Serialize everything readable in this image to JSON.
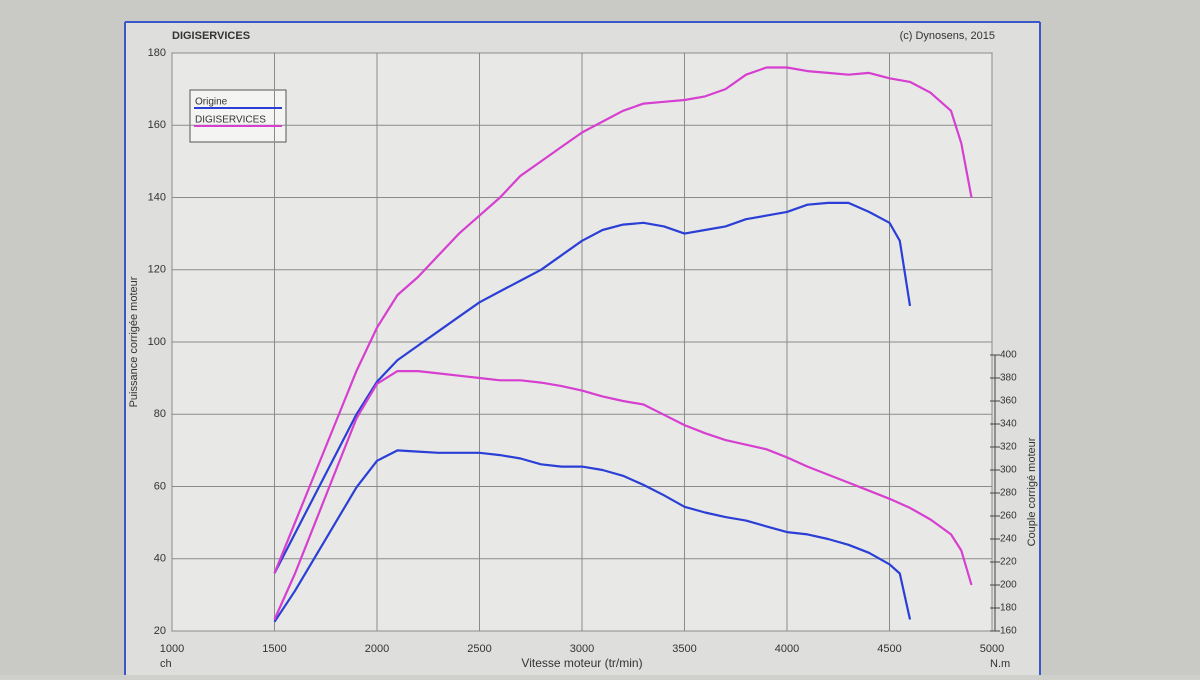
{
  "chart_data": {
    "type": "line",
    "header_left": "DIGISERVICES",
    "header_right": "(c) Dynosens, 2015",
    "x_label": "Vitesse moteur (tr/min)",
    "y_label": "Puissance corrigée moteur",
    "y_unit": "ch",
    "y2_label": "Couple corrigé moteur",
    "y2_unit": "N.m",
    "xlim": [
      1000,
      5000
    ],
    "xticks": [
      1000,
      1500,
      2000,
      2500,
      3000,
      3500,
      4000,
      4500,
      5000
    ],
    "ylim": [
      20,
      180
    ],
    "yticks": [
      20,
      40,
      60,
      80,
      100,
      120,
      140,
      160,
      180
    ],
    "y2lim": [
      160,
      400
    ],
    "y2ticks": [
      160,
      180,
      200,
      220,
      240,
      260,
      280,
      300,
      320,
      340,
      360,
      380,
      400
    ],
    "grid": true,
    "legend": "upper left",
    "series": [
      {
        "name": "Origine",
        "color": "#2b3fd6",
        "x": [
          1500,
          1600,
          1700,
          1800,
          1900,
          2000,
          2100,
          2200,
          2300,
          2400,
          2500,
          2600,
          2700,
          2800,
          2900,
          3000,
          3100,
          3200,
          3300,
          3400,
          3500,
          3600,
          3700,
          3800,
          3900,
          4000,
          4100,
          4200,
          4300,
          4400,
          4500,
          4550,
          4600
        ],
        "values": [
          36,
          47,
          58,
          69,
          80,
          89,
          95,
          99,
          103,
          107,
          111,
          114,
          117,
          120,
          124,
          128,
          131,
          132.5,
          133,
          132,
          130,
          131,
          132,
          134,
          135,
          136,
          138,
          138.5,
          138.5,
          136,
          133,
          128,
          110
        ]
      },
      {
        "name": "DIGISERVICES",
        "color": "#d63fd0",
        "x": [
          1500,
          1600,
          1700,
          1800,
          1900,
          2000,
          2100,
          2200,
          2300,
          2400,
          2500,
          2600,
          2700,
          2800,
          2900,
          3000,
          3100,
          3200,
          3300,
          3400,
          3500,
          3600,
          3700,
          3800,
          3900,
          4000,
          4100,
          4200,
          4300,
          4400,
          4500,
          4600,
          4700,
          4800,
          4850,
          4900
        ],
        "values": [
          36,
          50,
          64,
          78,
          92,
          104,
          113,
          118,
          124,
          130,
          135,
          140,
          146,
          150,
          154,
          158,
          161,
          164,
          166,
          166.5,
          167,
          168,
          170,
          174,
          176,
          176,
          175,
          174.5,
          174,
          174.5,
          173,
          172,
          169,
          164,
          155,
          140
        ]
      },
      {
        "color": "#2b3fd6",
        "axis": "y2",
        "x": [
          1500,
          1600,
          1700,
          1800,
          1900,
          2000,
          2100,
          2200,
          2300,
          2400,
          2500,
          2600,
          2700,
          2800,
          2900,
          3000,
          3100,
          3200,
          3300,
          3400,
          3500,
          3600,
          3700,
          3800,
          3900,
          4000,
          4100,
          4200,
          4300,
          4400,
          4500,
          4550,
          4600
        ],
        "values": [
          168,
          195,
          225,
          255,
          285,
          308,
          317,
          316,
          315,
          315,
          315,
          313,
          310,
          305,
          303,
          303,
          300,
          295,
          287,
          278,
          268,
          263,
          259,
          256,
          251,
          246,
          244,
          240,
          235,
          228,
          218,
          210,
          170
        ]
      },
      {
        "color": "#d63fd0",
        "axis": "y2",
        "x": [
          1500,
          1600,
          1700,
          1800,
          1900,
          2000,
          2100,
          2200,
          2300,
          2400,
          2500,
          2600,
          2700,
          2800,
          2900,
          3000,
          3100,
          3200,
          3300,
          3400,
          3500,
          3600,
          3700,
          3800,
          3900,
          4000,
          4100,
          4200,
          4300,
          4400,
          4500,
          4600,
          4700,
          4800,
          4850,
          4900
        ],
        "values": [
          170,
          210,
          255,
          300,
          345,
          375,
          386,
          386,
          384,
          382,
          380,
          378,
          378,
          376,
          373,
          369,
          364,
          360,
          357,
          348,
          339,
          332,
          326,
          322,
          318,
          311,
          303,
          296,
          289,
          282,
          275,
          267,
          257,
          244,
          230,
          200
        ]
      }
    ]
  }
}
